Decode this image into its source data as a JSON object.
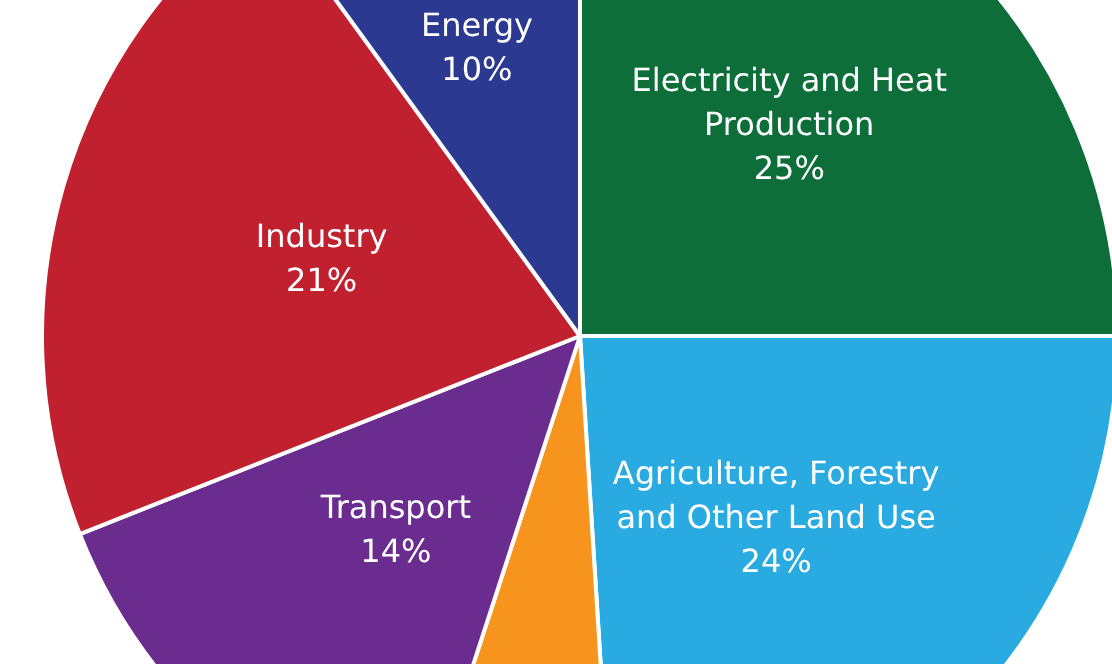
{
  "chart_data": {
    "type": "pie",
    "categories": [
      "Electricity and Heat Production",
      "Agriculture, Forestry and Other Land Use",
      null,
      "Transport",
      "Industry",
      "Energy"
    ],
    "values": [
      25,
      24,
      6,
      14,
      21,
      10
    ],
    "colors": [
      "#0d6e3a",
      "#29abe2",
      "#f7941d",
      "#6a2c8f",
      "#c1202f",
      "#2b3990"
    ],
    "value_labels": [
      "25%",
      "24%",
      null,
      "14%",
      "21%",
      "10%"
    ],
    "legend": false
  }
}
